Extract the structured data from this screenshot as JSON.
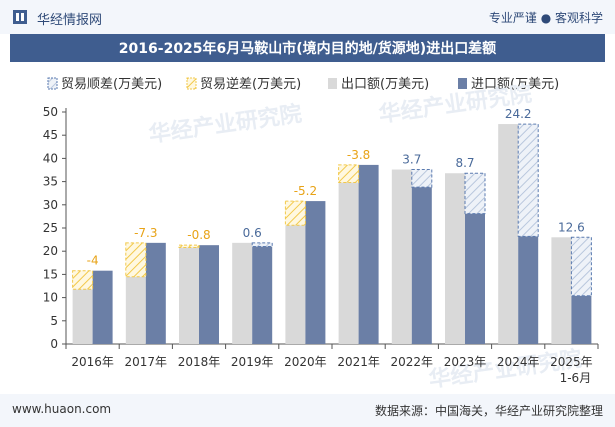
{
  "header": {
    "brand": "华经情报网",
    "tagline": "专业严谨 ● 客观科学"
  },
  "title": "2016-2025年6月马鞍山市(境内目的地/货源地)进出口差额",
  "legend": [
    "贸易顺差(万美元)",
    "贸易逆差(万美元)",
    "出口额(万美元)",
    "进口额(万美元)"
  ],
  "watermark": "华经产业研究院",
  "footer": {
    "left": "www.huaon.com",
    "right": "数据来源：中国海关，华经产业研究院整理"
  },
  "colors": {
    "export": "#d9d9d9",
    "import": "#6b7fa6",
    "surplus": "#5b7bb0",
    "deficit": "#f2c94c",
    "label_neg": "#e8a317",
    "label_pos": "#4a6a9a"
  },
  "chart_data": {
    "type": "bar",
    "categories": [
      "2016年",
      "2017年",
      "2018年",
      "2019年",
      "2020年",
      "2021年",
      "2022年",
      "2023年",
      "2024年",
      "2025年"
    ],
    "category_sublabels": [
      "",
      "",
      "",
      "",
      "",
      "",
      "",
      "",
      "",
      "1-6月"
    ],
    "series": [
      {
        "name": "出口额(万美元)",
        "values": [
          11.8,
          14.5,
          20.8,
          21.8,
          25.6,
          34.8,
          37.6,
          36.8,
          47.4,
          23.0
        ]
      },
      {
        "name": "进口额(万美元)",
        "values": [
          15.8,
          21.8,
          21.3,
          21.0,
          30.8,
          38.6,
          33.8,
          28.1,
          23.2,
          10.4
        ]
      }
    ],
    "balance": [
      -4,
      -7.3,
      -0.8,
      0.6,
      -5.2,
      -3.8,
      3.7,
      8.7,
      24.2,
      12.6
    ],
    "balance_labels": [
      "-4",
      "-7.3",
      "-0.8",
      "0.6",
      "-5.2",
      "-3.8",
      "3.7",
      "8.7",
      "24.2",
      "12.6"
    ],
    "ylim": [
      0,
      50
    ],
    "yticks": [
      0,
      5,
      10,
      15,
      20,
      25,
      30,
      35,
      40,
      45,
      50
    ],
    "grid": false,
    "legend_position": "top-left"
  }
}
